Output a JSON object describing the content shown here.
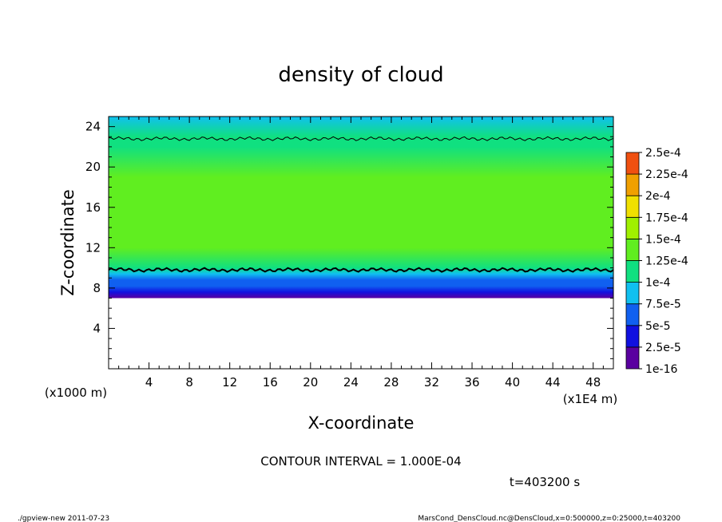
{
  "chart_data": {
    "type": "heatmap",
    "title": "density of cloud",
    "xlabel": "X-coordinate",
    "ylabel": "Z-coordinate",
    "x_unit_label": "(x1E4 m)",
    "y_unit_label": "(x1000 m)",
    "xlim": [
      0,
      50
    ],
    "ylim": [
      0,
      25
    ],
    "x_ticks": [
      4,
      8,
      12,
      16,
      20,
      24,
      28,
      32,
      36,
      40,
      44,
      48
    ],
    "y_ticks": [
      4,
      8,
      12,
      16,
      20,
      24
    ],
    "colorbar": {
      "levels": [
        "1e-16",
        "2.5e-5",
        "5e-5",
        "7.5e-5",
        "1e-4",
        "1.25e-4",
        "1.5e-4",
        "1.75e-4",
        "2e-4",
        "2.25e-4",
        "2.5e-4"
      ],
      "colors": [
        "#5a00a0",
        "#1010e0",
        "#1060f0",
        "#10c0f0",
        "#10e080",
        "#60ee20",
        "#a0f000",
        "#f0e000",
        "#f0a000",
        "#f05010",
        "#f0a0a0"
      ]
    },
    "profile": [
      {
        "z": 7.0,
        "value": 2e-05
      },
      {
        "z": 7.6,
        "value": 3e-05
      },
      {
        "z": 8.2,
        "value": 5e-05
      },
      {
        "z": 8.8,
        "value": 7e-05
      },
      {
        "z": 9.4,
        "value": 9e-05
      },
      {
        "z": 10.0,
        "value": 0.000115
      },
      {
        "z": 12.0,
        "value": 0.00013
      },
      {
        "z": 15.0,
        "value": 0.00014
      },
      {
        "z": 19.0,
        "value": 0.00014
      },
      {
        "z": 22.0,
        "value": 0.00012
      },
      {
        "z": 23.0,
        "value": 0.0001
      },
      {
        "z": 25.0,
        "value": 9e-05
      }
    ],
    "contour_lines_z": [
      9.8,
      22.8
    ],
    "contour_interval": "CONTOUR INTERVAL = 1.000E-04",
    "time": "t=403200 s"
  },
  "footer": {
    "left": "./gpview-new  2011-07-23",
    "right": "MarsCond_DensCloud.nc@DensCloud,x=0:500000,z=0:25000,t=403200"
  }
}
